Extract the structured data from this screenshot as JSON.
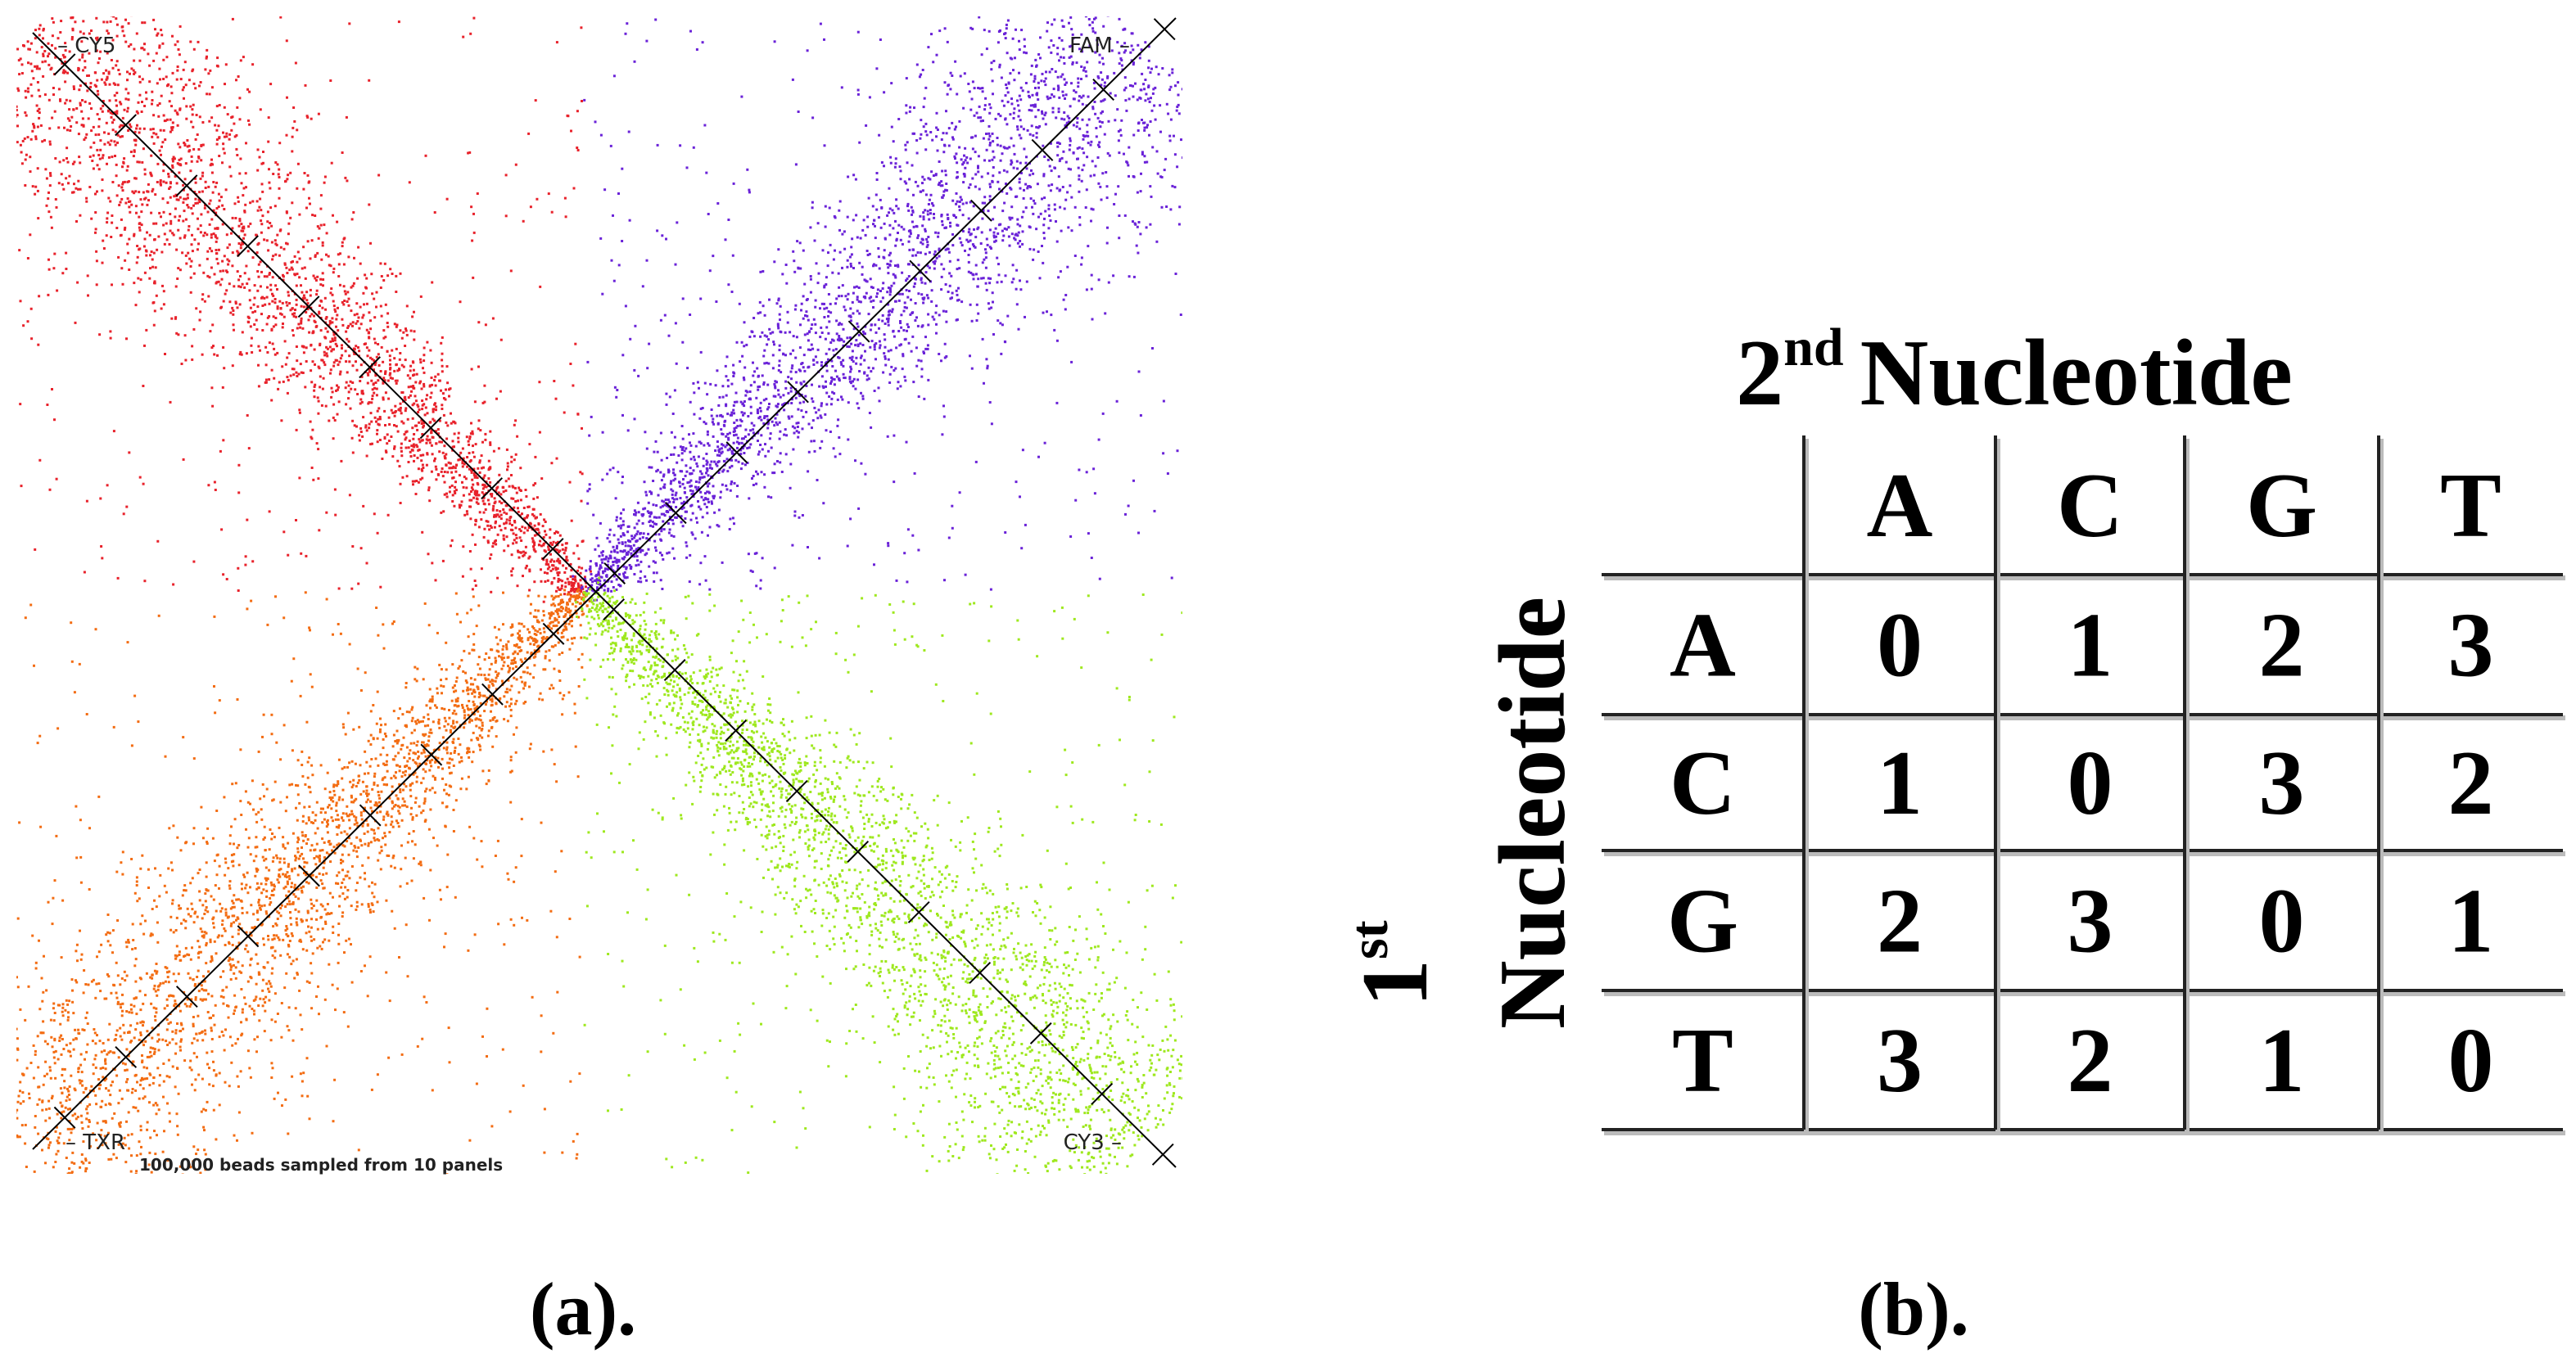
{
  "panel_a": {
    "labels": {
      "top_left": "CY5",
      "top_right": "FAM",
      "bottom_left": "TXR",
      "bottom_right": "CY3"
    },
    "footnote": "100,000 beads sampled from 10 panels",
    "colors": {
      "top_left": "#e8222b",
      "top_right": "#6a22d8",
      "bottom_left": "#f36c12",
      "bottom_right": "#9ee81e"
    },
    "caption": "(a)."
  },
  "panel_b": {
    "column_title": {
      "number": "2",
      "suffix": "nd",
      "word": "Nucleotide"
    },
    "row_title": {
      "number": "1",
      "suffix": "st",
      "word": "Nucleotide"
    },
    "table": {
      "header": [
        "A",
        "C",
        "G",
        "T"
      ],
      "rows": [
        [
          "A",
          0,
          1,
          2,
          3
        ],
        [
          "C",
          1,
          0,
          3,
          2
        ],
        [
          "G",
          2,
          3,
          0,
          1
        ],
        [
          "T",
          3,
          2,
          1,
          0
        ]
      ]
    },
    "caption": "(b)."
  }
}
